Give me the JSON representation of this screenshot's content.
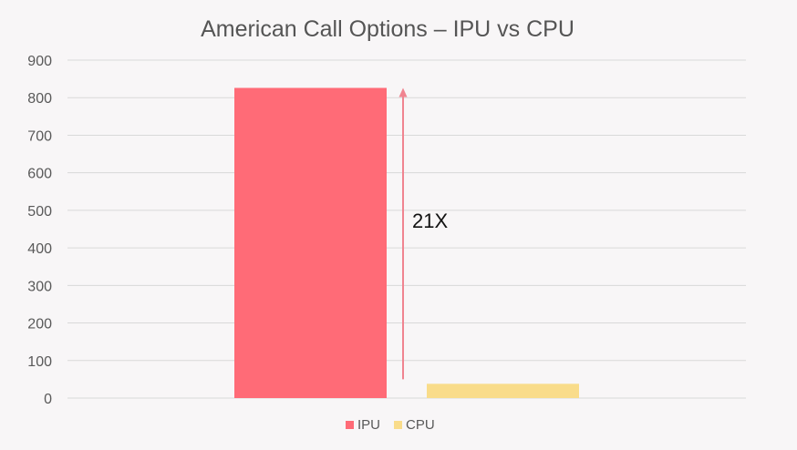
{
  "chart_data": {
    "type": "bar",
    "title": "American Call Options – IPU vs CPU",
    "xlabel": "",
    "ylabel": "",
    "categories": [
      ""
    ],
    "series": [
      {
        "name": "IPU",
        "values": [
          826
        ],
        "color": "#ff6b77"
      },
      {
        "name": "CPU",
        "values": [
          38
        ],
        "color": "#f9dc8a"
      }
    ],
    "ylim": [
      0,
      900
    ],
    "yticks": [
      0,
      100,
      200,
      300,
      400,
      500,
      600,
      700,
      800,
      900
    ],
    "grid": true,
    "legend": "bottom-center",
    "annotation": {
      "text": "21X",
      "arrow_from_value": 50,
      "arrow_to_value": 826,
      "arrow_color": "#f08490"
    }
  }
}
